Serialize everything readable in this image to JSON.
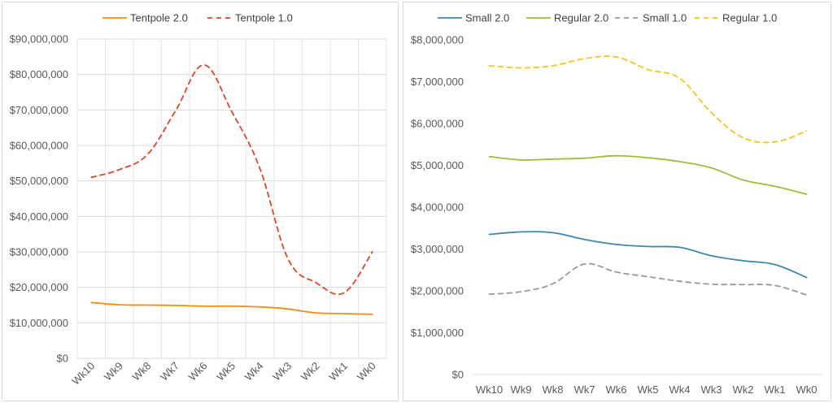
{
  "chart_data": [
    {
      "type": "line",
      "title": "",
      "categories": [
        "Wk10",
        "Wk9",
        "Wk8",
        "Wk7",
        "Wk6",
        "Wk5",
        "Wk4",
        "Wk3",
        "Wk2",
        "Wk1",
        "Wk0"
      ],
      "ylim": [
        0,
        90000000
      ],
      "yticks": [
        0,
        10000000,
        20000000,
        30000000,
        40000000,
        50000000,
        60000000,
        70000000,
        80000000,
        90000000
      ],
      "ytick_labels": [
        "$0",
        "$10,000,000",
        "$20,000,000",
        "$30,000,000",
        "$40,000,000",
        "$50,000,000",
        "$60,000,000",
        "$70,000,000",
        "$80,000,000",
        "$90,000,000"
      ],
      "grid": true,
      "legend_position": "top",
      "xtick_rotation": "rotated",
      "series": [
        {
          "name": "Tentpole 2.0",
          "color": "#f28e0c",
          "dash": "solid",
          "values": [
            15700000,
            15100000,
            15000000,
            14900000,
            14700000,
            14700000,
            14500000,
            13900000,
            12800000,
            12600000,
            12400000
          ]
        },
        {
          "name": "Tentpole 1.0",
          "color": "#e0452a",
          "dash": "dashed",
          "values": [
            51000000,
            53200000,
            57500000,
            69800000,
            82700000,
            69500000,
            53500000,
            28000000,
            21300000,
            18500000,
            30000000
          ]
        }
      ]
    },
    {
      "type": "line",
      "title": "",
      "categories": [
        "Wk10",
        "Wk9",
        "Wk8",
        "Wk7",
        "Wk6",
        "Wk5",
        "Wk4",
        "Wk3",
        "Wk2",
        "Wk1",
        "Wk0"
      ],
      "ylim": [
        0,
        8000000
      ],
      "yticks": [
        0,
        1000000,
        2000000,
        3000000,
        4000000,
        5000000,
        6000000,
        7000000,
        8000000
      ],
      "ytick_labels": [
        "$0",
        "$1,000,000",
        "$2,000,000",
        "$3,000,000",
        "$4,000,000",
        "$5,000,000",
        "$6,000,000",
        "$7,000,000",
        "$8,000,000"
      ],
      "grid": false,
      "legend_position": "top",
      "xtick_rotation": "horizontal",
      "series": [
        {
          "name": "Small 2.0",
          "color": "#3f86ae",
          "dash": "solid",
          "values": [
            3350000,
            3410000,
            3390000,
            3230000,
            3110000,
            3060000,
            3040000,
            2840000,
            2720000,
            2630000,
            2320000
          ]
        },
        {
          "name": "Regular 2.0",
          "color": "#9cbe3c",
          "dash": "solid",
          "values": [
            5210000,
            5130000,
            5150000,
            5170000,
            5230000,
            5180000,
            5090000,
            4940000,
            4650000,
            4500000,
            4310000
          ]
        },
        {
          "name": "Small 1.0",
          "color": "#999999",
          "dash": "dashed",
          "values": [
            1920000,
            1980000,
            2170000,
            2640000,
            2450000,
            2340000,
            2230000,
            2160000,
            2150000,
            2130000,
            1900000
          ]
        },
        {
          "name": "Regular 1.0",
          "color": "#f5c518",
          "dash": "dashed",
          "values": [
            7380000,
            7330000,
            7380000,
            7550000,
            7590000,
            7290000,
            7080000,
            6260000,
            5660000,
            5560000,
            5820000
          ]
        }
      ]
    }
  ]
}
